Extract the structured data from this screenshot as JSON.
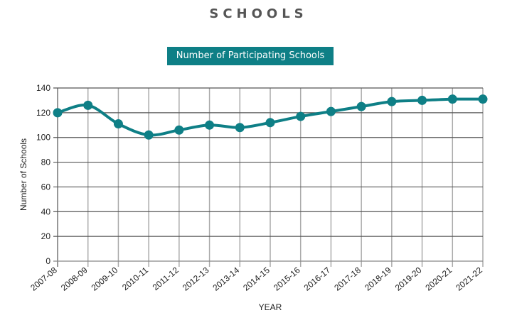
{
  "page": {
    "title": "SCHOOLS",
    "badge": "Number of Participating Schools"
  },
  "colors": {
    "series": "#0e7f86",
    "badge_bg": "#0e7f86",
    "grid_h": "#555555",
    "grid_v": "#aaaaaa"
  },
  "chart_data": {
    "type": "line",
    "title": "Number of Participating Schools",
    "xlabel": "YEAR",
    "ylabel": "Number of Schools",
    "ylim": [
      0,
      140
    ],
    "yticks": [
      0,
      20,
      40,
      60,
      80,
      100,
      120,
      140
    ],
    "grid": true,
    "legend": "none",
    "categories": [
      "2007-08",
      "2008-09",
      "2009-10",
      "2010-11",
      "2011-12",
      "2012-13",
      "2013-14",
      "2014-15",
      "2015-16",
      "2016-17",
      "2017-18",
      "2018-19",
      "2019-20",
      "2020-21",
      "2021-22"
    ],
    "series": [
      {
        "name": "Number of Participating Schools",
        "values": [
          120,
          126,
          111,
          102,
          106,
          110,
          108,
          112,
          117,
          121,
          125,
          129,
          130,
          131,
          131
        ]
      }
    ]
  }
}
